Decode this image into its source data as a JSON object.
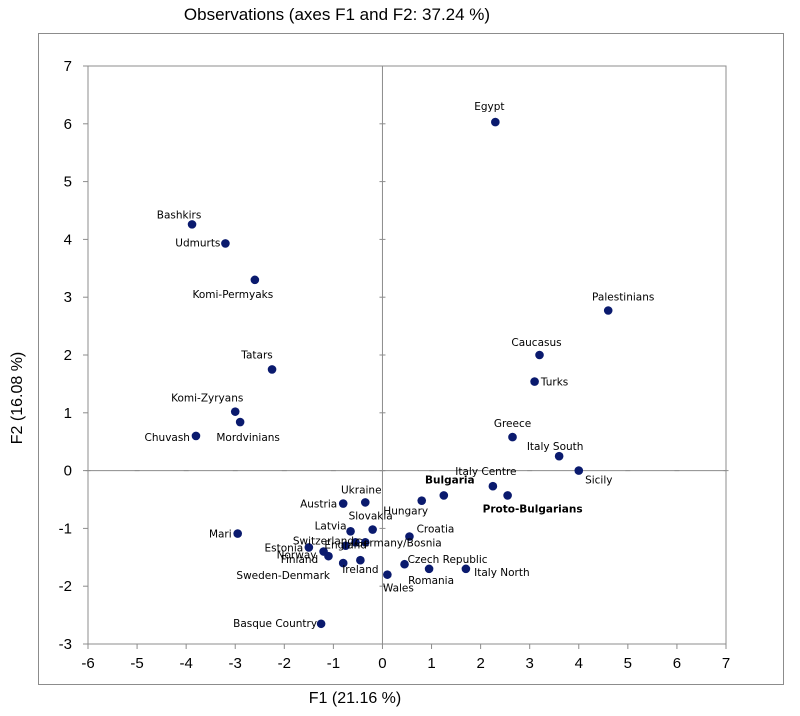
{
  "chart_data": {
    "type": "scatter",
    "title": "Observations (axes F1 and F2: 37.24 %)",
    "xlabel": "F1 (21.16 %)",
    "ylabel": "F2 (16.08 %)",
    "xlim": [
      -6,
      7
    ],
    "ylim": [
      -3,
      7
    ],
    "xticks": [
      "-6",
      "-5",
      "-4",
      "-3",
      "-2",
      "-1",
      "0",
      "1",
      "2",
      "3",
      "4",
      "5",
      "6",
      "7"
    ],
    "yticks": [
      "-3",
      "-2",
      "-1",
      "0",
      "1",
      "2",
      "3",
      "4",
      "5",
      "6",
      "7"
    ],
    "grid": false,
    "marker_color": "#0a1a6e",
    "points": [
      {
        "label": "Egypt",
        "x": 2.3,
        "y": 6.03
      },
      {
        "label": "Bashkirs",
        "x": -3.88,
        "y": 4.26
      },
      {
        "label": "Udmurts",
        "x": -3.2,
        "y": 3.93
      },
      {
        "label": "Komi-Permyaks",
        "x": -2.6,
        "y": 3.3
      },
      {
        "label": "Palestinians",
        "x": 4.6,
        "y": 2.77
      },
      {
        "label": "Caucasus",
        "x": 3.2,
        "y": 2.0
      },
      {
        "label": "Turks",
        "x": 3.1,
        "y": 1.54
      },
      {
        "label": "Tatars",
        "x": -2.25,
        "y": 1.75
      },
      {
        "label": "Komi-Zyryans",
        "x": -3.0,
        "y": 1.02
      },
      {
        "label": "Mordvinians",
        "x": -2.9,
        "y": 0.84
      },
      {
        "label": "Chuvash",
        "x": -3.8,
        "y": 0.6
      },
      {
        "label": "Greece",
        "x": 2.65,
        "y": 0.58
      },
      {
        "label": "Italy South",
        "x": 3.6,
        "y": 0.25
      },
      {
        "label": "Sicily",
        "x": 4.0,
        "y": 0.0
      },
      {
        "label": "Italy Centre",
        "x": 2.25,
        "y": -0.27
      },
      {
        "label": "Bulgaria",
        "x": 1.25,
        "y": -0.43
      },
      {
        "label": "Proto-Bulgarians",
        "x": 2.55,
        "y": -0.43
      },
      {
        "label": "Hungary",
        "x": 0.8,
        "y": -0.52
      },
      {
        "label": "Ukraine",
        "x": -0.35,
        "y": -0.55
      },
      {
        "label": "Austria",
        "x": -0.8,
        "y": -0.57
      },
      {
        "label": "Slovakia",
        "x": -0.2,
        "y": -1.02
      },
      {
        "label": "Latvia",
        "x": -0.65,
        "y": -1.05
      },
      {
        "label": "Croatia",
        "x": 0.55,
        "y": -1.14
      },
      {
        "label": "Switzerland",
        "x": -0.55,
        "y": -1.24
      },
      {
        "label": "Germany/Bosnia",
        "x": -0.35,
        "y": -1.24
      },
      {
        "label": "Estonia",
        "x": -1.5,
        "y": -1.33
      },
      {
        "label": "Norway",
        "x": -1.2,
        "y": -1.4
      },
      {
        "label": "England",
        "x": -0.75,
        "y": -1.3
      },
      {
        "label": "Mari",
        "x": -2.95,
        "y": -1.09
      },
      {
        "label": "Finland",
        "x": -1.1,
        "y": -1.48
      },
      {
        "label": "Sweden-Denmark",
        "x": -0.8,
        "y": -1.6
      },
      {
        "label": "Ireland",
        "x": -0.45,
        "y": -1.55
      },
      {
        "label": "Czech Republic",
        "x": 0.45,
        "y": -1.62
      },
      {
        "label": "Romania",
        "x": 0.95,
        "y": -1.7
      },
      {
        "label": "Italy North",
        "x": 1.7,
        "y": -1.7
      },
      {
        "label": "Wales",
        "x": 0.1,
        "y": -1.8
      },
      {
        "label": "Basque Country",
        "x": -1.25,
        "y": -2.65
      }
    ]
  }
}
